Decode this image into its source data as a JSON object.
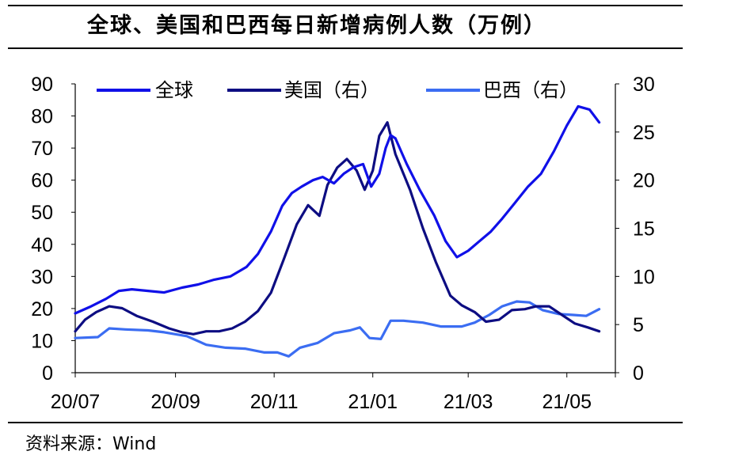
{
  "title": "全球、美国和巴西每日新增病例人数（万例）",
  "source": "资料来源：Wind",
  "chart_data": {
    "type": "line",
    "x_tick_labels": [
      "20/07",
      "20/09",
      "20/11",
      "21/01",
      "21/03",
      "21/05"
    ],
    "x_tick_dates": [
      "2020-07",
      "2020-09",
      "2020-11",
      "2021-01",
      "2021-03",
      "2021-05"
    ],
    "x_range": [
      "2020-07",
      "2021-05-31"
    ],
    "y_left": {
      "ticks": [
        0,
        10,
        20,
        30,
        40,
        50,
        60,
        70,
        80,
        90
      ],
      "range": [
        0,
        90
      ]
    },
    "y_right": {
      "ticks": [
        0,
        5,
        10,
        15,
        20,
        25,
        30
      ],
      "range": [
        0,
        30
      ]
    },
    "grid": false,
    "legend_position": "top",
    "series": [
      {
        "name": "全球",
        "axis": "left",
        "color": "#1010e8",
        "points": [
          [
            "2020-07-01",
            18.5
          ],
          [
            "2020-07-10",
            20.5
          ],
          [
            "2020-07-20",
            23
          ],
          [
            "2020-07-28",
            25.5
          ],
          [
            "2020-08-05",
            26
          ],
          [
            "2020-08-15",
            25.5
          ],
          [
            "2020-08-25",
            25
          ],
          [
            "2020-09-05",
            26.5
          ],
          [
            "2020-09-15",
            27.5
          ],
          [
            "2020-09-25",
            29
          ],
          [
            "2020-10-05",
            30
          ],
          [
            "2020-10-15",
            33
          ],
          [
            "2020-10-22",
            37
          ],
          [
            "2020-10-30",
            44
          ],
          [
            "2020-11-06",
            52
          ],
          [
            "2020-11-12",
            56
          ],
          [
            "2020-11-18",
            58
          ],
          [
            "2020-11-25",
            60
          ],
          [
            "2020-12-01",
            61
          ],
          [
            "2020-12-08",
            59
          ],
          [
            "2020-12-14",
            62
          ],
          [
            "2020-12-20",
            64
          ],
          [
            "2020-12-26",
            65
          ],
          [
            "2020-12-31",
            58
          ],
          [
            "2021-01-05",
            62
          ],
          [
            "2021-01-09",
            70
          ],
          [
            "2021-01-12",
            74
          ],
          [
            "2021-01-15",
            73
          ],
          [
            "2021-01-22",
            65
          ],
          [
            "2021-01-30",
            57
          ],
          [
            "2021-02-08",
            49
          ],
          [
            "2021-02-15",
            41
          ],
          [
            "2021-02-22",
            36
          ],
          [
            "2021-03-01",
            38
          ],
          [
            "2021-03-08",
            41
          ],
          [
            "2021-03-15",
            44
          ],
          [
            "2021-03-22",
            48
          ],
          [
            "2021-03-30",
            53
          ],
          [
            "2021-04-07",
            58
          ],
          [
            "2021-04-15",
            62
          ],
          [
            "2021-04-23",
            69
          ],
          [
            "2021-05-01",
            77
          ],
          [
            "2021-05-08",
            83
          ],
          [
            "2021-05-15",
            82
          ],
          [
            "2021-05-21",
            78
          ]
        ]
      },
      {
        "name": "美国（右）",
        "axis": "right",
        "color": "#0d0d82",
        "points": [
          [
            "2020-07-01",
            4.3
          ],
          [
            "2020-07-07",
            5.5
          ],
          [
            "2020-07-14",
            6.3
          ],
          [
            "2020-07-22",
            6.9
          ],
          [
            "2020-07-30",
            6.7
          ],
          [
            "2020-08-08",
            5.9
          ],
          [
            "2020-08-18",
            5.3
          ],
          [
            "2020-08-28",
            4.6
          ],
          [
            "2020-09-05",
            4.2
          ],
          [
            "2020-09-12",
            4.0
          ],
          [
            "2020-09-20",
            4.3
          ],
          [
            "2020-09-28",
            4.3
          ],
          [
            "2020-10-06",
            4.6
          ],
          [
            "2020-10-14",
            5.3
          ],
          [
            "2020-10-22",
            6.4
          ],
          [
            "2020-10-30",
            8.3
          ],
          [
            "2020-11-07",
            11.8
          ],
          [
            "2020-11-15",
            15.4
          ],
          [
            "2020-11-22",
            17.4
          ],
          [
            "2020-11-29",
            16.3
          ],
          [
            "2020-12-04",
            19.5
          ],
          [
            "2020-12-10",
            21.3
          ],
          [
            "2020-12-16",
            22.2
          ],
          [
            "2020-12-22",
            21.0
          ],
          [
            "2020-12-27",
            19.0
          ],
          [
            "2021-01-01",
            21.0
          ],
          [
            "2021-01-05",
            24.6
          ],
          [
            "2021-01-10",
            26.0
          ],
          [
            "2021-01-15",
            22.7
          ],
          [
            "2021-01-24",
            19.0
          ],
          [
            "2021-02-01",
            15.0
          ],
          [
            "2021-02-09",
            11.5
          ],
          [
            "2021-02-18",
            8.0
          ],
          [
            "2021-02-25",
            7.0
          ],
          [
            "2021-03-05",
            6.3
          ],
          [
            "2021-03-12",
            5.3
          ],
          [
            "2021-03-20",
            5.5
          ],
          [
            "2021-03-28",
            6.5
          ],
          [
            "2021-04-05",
            6.6
          ],
          [
            "2021-04-12",
            6.9
          ],
          [
            "2021-04-20",
            6.9
          ],
          [
            "2021-04-28",
            6.0
          ],
          [
            "2021-05-06",
            5.1
          ],
          [
            "2021-05-14",
            4.7
          ],
          [
            "2021-05-21",
            4.3
          ]
        ]
      },
      {
        "name": "巴西（右）",
        "axis": "right",
        "color": "#3b6df2",
        "points": [
          [
            "2020-07-01",
            3.6
          ],
          [
            "2020-07-15",
            3.7
          ],
          [
            "2020-07-22",
            4.6
          ],
          [
            "2020-08-01",
            4.5
          ],
          [
            "2020-08-15",
            4.4
          ],
          [
            "2020-08-25",
            4.2
          ],
          [
            "2020-09-08",
            3.8
          ],
          [
            "2020-09-20",
            2.9
          ],
          [
            "2020-10-02",
            2.6
          ],
          [
            "2020-10-14",
            2.5
          ],
          [
            "2020-10-26",
            2.1
          ],
          [
            "2020-11-03",
            2.1
          ],
          [
            "2020-11-10",
            1.7
          ],
          [
            "2020-11-17",
            2.6
          ],
          [
            "2020-11-28",
            3.1
          ],
          [
            "2020-12-08",
            4.1
          ],
          [
            "2020-12-18",
            4.4
          ],
          [
            "2020-12-24",
            4.7
          ],
          [
            "2020-12-30",
            3.6
          ],
          [
            "2021-01-06",
            3.5
          ],
          [
            "2021-01-12",
            5.4
          ],
          [
            "2021-01-20",
            5.4
          ],
          [
            "2021-02-01",
            5.2
          ],
          [
            "2021-02-12",
            4.8
          ],
          [
            "2021-02-25",
            4.8
          ],
          [
            "2021-03-05",
            5.2
          ],
          [
            "2021-03-14",
            6.0
          ],
          [
            "2021-03-22",
            6.9
          ],
          [
            "2021-03-31",
            7.4
          ],
          [
            "2021-04-08",
            7.3
          ],
          [
            "2021-04-16",
            6.5
          ],
          [
            "2021-04-26",
            6.1
          ],
          [
            "2021-05-05",
            6.0
          ],
          [
            "2021-05-13",
            5.9
          ],
          [
            "2021-05-21",
            6.6
          ]
        ]
      }
    ]
  }
}
